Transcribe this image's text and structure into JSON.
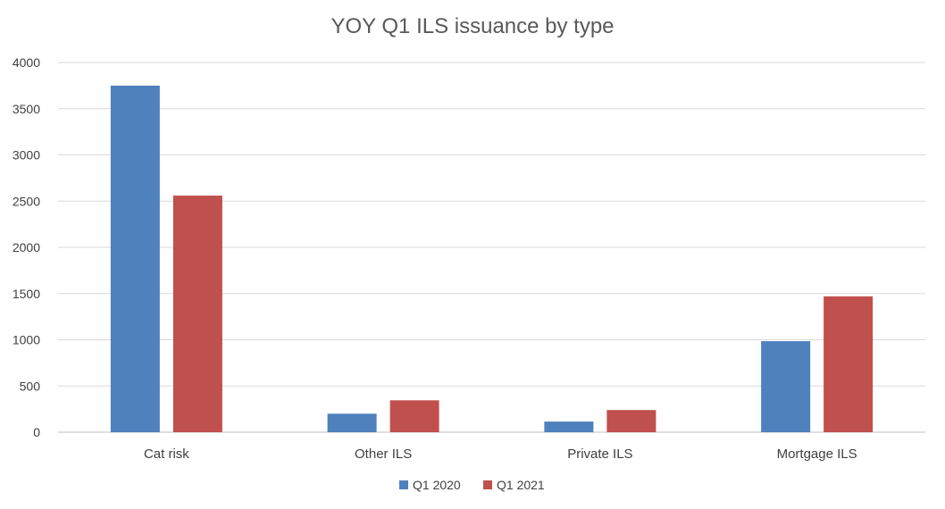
{
  "chart_data": {
    "type": "bar",
    "title": "YOY Q1 ILS issuance by type",
    "xlabel": "",
    "ylabel": "",
    "categories": [
      "Cat risk",
      "Other ILS",
      "Private ILS",
      "Mortgage ILS"
    ],
    "series": [
      {
        "name": "Q1 2020",
        "color": "#4f81bd",
        "values": [
          3750,
          200,
          115,
          985
        ]
      },
      {
        "name": "Q1 2021",
        "color": "#c0504d",
        "values": [
          2560,
          345,
          240,
          1470
        ]
      }
    ],
    "ylim": [
      0,
      4000
    ],
    "yticks": [
      "0",
      "500",
      "1000",
      "1500",
      "2000",
      "2500",
      "3000",
      "3500",
      "4000"
    ],
    "grid": true,
    "legend_position": "bottom"
  }
}
